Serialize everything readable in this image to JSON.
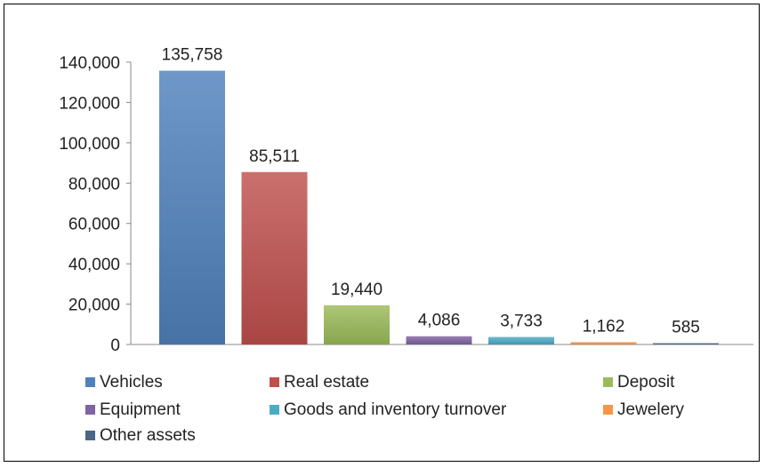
{
  "chart_data": {
    "type": "bar",
    "title": "",
    "xlabel": "",
    "ylabel": "",
    "ylim": [
      0,
      140000
    ],
    "yticks": [
      0,
      20000,
      40000,
      60000,
      80000,
      100000,
      120000,
      140000
    ],
    "ytick_labels": [
      "0",
      "20,000",
      "40,000",
      "60,000",
      "80,000",
      "100,000",
      "120,000",
      "140,000"
    ],
    "grid": false,
    "legend_position": "bottom",
    "categories": [
      "Vehicles",
      "Real estate",
      "Deposit",
      "Equipment",
      "Goods and inventory turnover",
      "Jewelery",
      "Other assets"
    ],
    "values": [
      135758,
      85511,
      19440,
      4086,
      3733,
      1162,
      585
    ],
    "value_labels": [
      "135,758",
      "85,511",
      "19,440",
      "4,086",
      "3,733",
      "1,162",
      "585"
    ],
    "colors": [
      "#4f81bd",
      "#c0504d",
      "#9bbb59",
      "#8064a2",
      "#4bacc6",
      "#f79646",
      "#4a6784"
    ]
  }
}
